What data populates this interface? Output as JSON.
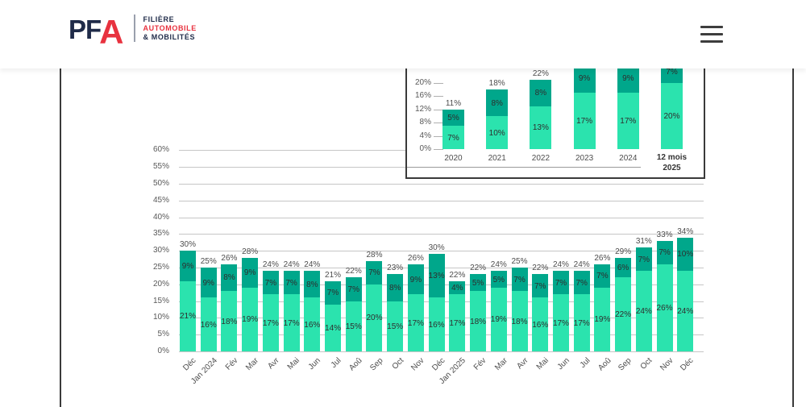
{
  "header": {
    "logo": {
      "pf": "PF",
      "a": "A",
      "tagline": [
        "FILIÈRE",
        "AUTOMOBILE",
        "& MOBILITÉS"
      ]
    }
  },
  "colors": {
    "series_light": "#2be3ae",
    "series_dark": "#00a78b",
    "logo_navy": "#1f2b49",
    "logo_red": "#e8323f"
  },
  "chart_data": [
    {
      "id": "annual-summary",
      "type": "bar",
      "stacked": true,
      "legend": "none",
      "categories": [
        "2020",
        "2021",
        "2022",
        "2023",
        "2024",
        "12 mois\n2025"
      ],
      "emphasis_last_category": true,
      "series": [
        {
          "name": "bottom-segment",
          "color": "#2be3ae",
          "values": [
            7,
            10,
            13,
            17,
            17,
            20
          ],
          "labels": [
            "7%",
            "10%",
            "13%",
            "17%",
            "17%",
            "20%"
          ]
        },
        {
          "name": "top-segment",
          "color": "#00a78b",
          "values": [
            5,
            8,
            8,
            9,
            9,
            7
          ],
          "labels": [
            "5%",
            "8%",
            "8%",
            "9%",
            "9%",
            "7%"
          ]
        }
      ],
      "total_labels": [
        "11%",
        "18%",
        "22%",
        null,
        null,
        null
      ],
      "yticks": [
        {
          "v": 0,
          "label": "0%"
        },
        {
          "v": 4,
          "label": "4%"
        },
        {
          "v": 8,
          "label": "8%"
        },
        {
          "v": 12,
          "label": "12%"
        },
        {
          "v": 16,
          "label": "16%"
        },
        {
          "v": 20,
          "label": "20%"
        }
      ],
      "ylim": [
        0,
        20
      ]
    },
    {
      "id": "monthly-detail",
      "type": "bar",
      "stacked": true,
      "legend": "none",
      "categories": [
        "Déc",
        "Jan 2024",
        "Fév",
        "Mar",
        "Avr",
        "Mai",
        "Jun",
        "Jul",
        "Aoû",
        "Sep",
        "Oct",
        "Nov",
        "Déc",
        "Jan 2025",
        "Fév",
        "Mar",
        "Avr",
        "Mai",
        "Jun",
        "Jul",
        "Aoû",
        "Sep",
        "Oct",
        "Nov",
        "Déc"
      ],
      "series": [
        {
          "name": "bottom-segment",
          "color": "#2be3ae",
          "values": [
            21,
            16,
            18,
            19,
            17,
            17,
            16,
            14,
            15,
            20,
            15,
            17,
            16,
            17,
            18,
            19,
            18,
            16,
            17,
            17,
            19,
            22,
            24,
            26,
            24
          ],
          "labels": [
            "21%",
            "16%",
            "18%",
            "19%",
            "17%",
            "17%",
            "16%",
            "14%",
            "15%",
            "20%",
            "15%",
            "17%",
            "16%",
            "17%",
            "18%",
            "19%",
            "18%",
            "16%",
            "17%",
            "17%",
            "19%",
            "22%",
            "24%",
            "26%",
            "24%"
          ]
        },
        {
          "name": "top-segment",
          "color": "#00a78b",
          "values": [
            9,
            9,
            8,
            9,
            7,
            7,
            8,
            7,
            7,
            7,
            8,
            9,
            13,
            4,
            5,
            5,
            7,
            7,
            7,
            7,
            7,
            6,
            7,
            7,
            10
          ],
          "labels": [
            "9%",
            "9%",
            "8%",
            "9%",
            "7%",
            "7%",
            "8%",
            "7%",
            "7%",
            "7%",
            "8%",
            "9%",
            "13%",
            "4%",
            "5%",
            "5%",
            "7%",
            "7%",
            "7%",
            "7%",
            "7%",
            "6%",
            "7%",
            "7%",
            "10%"
          ]
        }
      ],
      "total_labels": [
        "30%",
        "25%",
        "26%",
        "28%",
        "24%",
        "24%",
        "24%",
        "21%",
        "22%",
        "28%",
        "23%",
        "26%",
        "30%",
        "22%",
        "22%",
        "24%",
        "25%",
        "22%",
        "24%",
        "24%",
        "26%",
        "29%",
        "31%",
        "33%",
        "34%"
      ],
      "yticks": [
        {
          "v": 0,
          "label": "0%"
        },
        {
          "v": 5,
          "label": "5%"
        },
        {
          "v": 10,
          "label": "10%"
        },
        {
          "v": 15,
          "label": "15%"
        },
        {
          "v": 20,
          "label": "20%"
        },
        {
          "v": 25,
          "label": "25%"
        },
        {
          "v": 30,
          "label": "30%"
        },
        {
          "v": 35,
          "label": "35%"
        },
        {
          "v": 40,
          "label": "40%"
        },
        {
          "v": 45,
          "label": "45%"
        },
        {
          "v": 50,
          "label": "50%"
        },
        {
          "v": 55,
          "label": "55%"
        },
        {
          "v": 60,
          "label": "60%"
        }
      ],
      "ylim": [
        0,
        60
      ]
    }
  ]
}
